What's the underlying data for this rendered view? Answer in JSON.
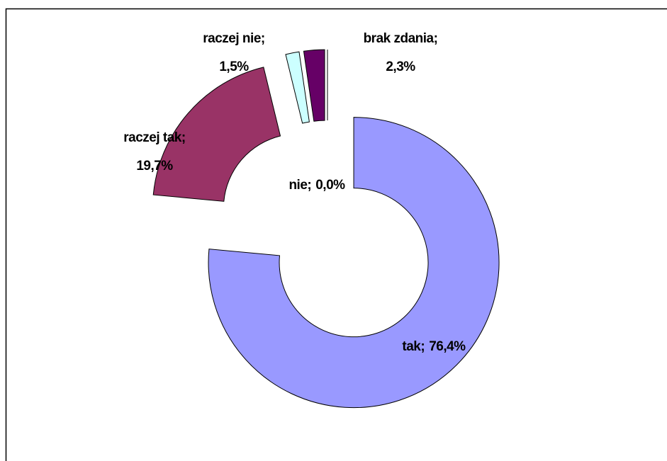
{
  "chart_data": {
    "type": "donut",
    "categories": [
      "tak;",
      "raczej tak;",
      "raczej nie;",
      "brak zdania;",
      "nie;"
    ],
    "values": [
      76.4,
      19.7,
      1.5,
      2.3,
      0.0
    ],
    "value_labels": [
      "76,4%",
      "19,7%",
      "1,5%",
      "2,3%",
      "0,0%"
    ],
    "colors": [
      "#9999ff",
      "#993366",
      "#ccffff",
      "#660066",
      "#ffffcc"
    ]
  }
}
